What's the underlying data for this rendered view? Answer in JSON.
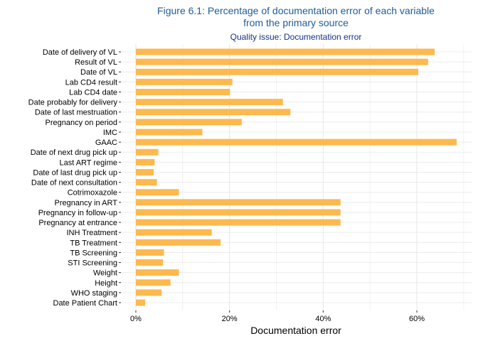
{
  "chart_data": {
    "type": "bar",
    "orientation": "horizontal",
    "title_line1": "Figure 6.1: Percentage of documentation error of each variable",
    "title_line2": "from the primary source",
    "subtitle": "Quality issue: Documentation error",
    "xlabel": "Documentation error",
    "ylabel": "",
    "xlim": [
      0,
      70
    ],
    "xticks": [
      0,
      20,
      40,
      60
    ],
    "xtick_labels": [
      "0%",
      "20%",
      "40%",
      "60%"
    ],
    "grid": true,
    "bar_color": "#FDB94E",
    "categories": [
      "Date of delivery of VL",
      "Result of VL",
      "Date of VL",
      "Lab CD4 result",
      "Lab CD4 date",
      "Date probably for delivery",
      "Date of last mestruation",
      "Pregnancy on period",
      "IMC",
      "GAAC",
      "Date of next drug pick up",
      "Last ART regime",
      "Date of last drug pick up",
      "Date of next consultation",
      "Cotrimoxazole",
      "Pregnancy in ART",
      "Pregnancy in follow-up",
      "Pregnancy at entrance",
      "INH Treatment",
      "TB Treatment",
      "TB Screening",
      "STI Screening",
      "Weight",
      "Height",
      "WHO staging",
      "Date Patient Chart"
    ],
    "values": [
      63.8,
      62.4,
      60.3,
      20.6,
      20.1,
      31.4,
      33.0,
      22.6,
      14.2,
      68.5,
      4.8,
      4.0,
      3.8,
      4.5,
      9.2,
      43.7,
      43.7,
      43.7,
      16.2,
      18.1,
      6.0,
      5.8,
      9.2,
      7.4,
      5.5,
      2.0
    ]
  }
}
